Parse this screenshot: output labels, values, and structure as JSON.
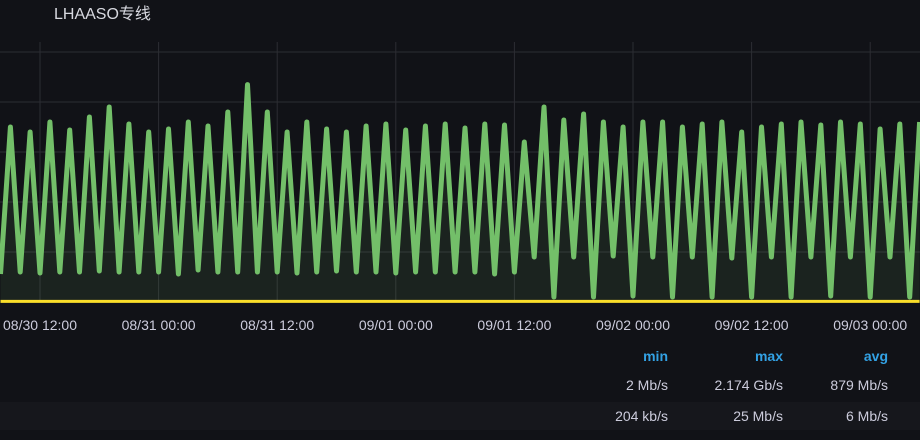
{
  "panel": {
    "title": "LHAASO专线"
  },
  "colors": {
    "series_green": "#73bf69",
    "series_yellow": "#fade2a",
    "grid": "#2c2d33",
    "legend_header": "#33a2e5"
  },
  "chart_data": {
    "type": "line",
    "title": "LHAASO专线",
    "x_ticks": [
      "08/30 12:00",
      "08/31 00:00",
      "08/31 12:00",
      "09/01 00:00",
      "09/01 12:00",
      "09/02 00:00",
      "09/02 12:00",
      "09/03 00:00"
    ],
    "ylim": [
      0,
      2.6
    ],
    "y_unit": "Gb/s",
    "grid": true,
    "legend_placement": "bottom",
    "x": [
      "08/30 08:00",
      "08/30 09:00",
      "08/30 10:00",
      "08/30 11:00",
      "08/30 12:00",
      "08/30 13:00",
      "08/30 14:00",
      "08/30 15:00",
      "08/30 16:00",
      "08/30 17:00",
      "08/30 18:00",
      "08/30 19:00",
      "08/30 20:00",
      "08/30 21:00",
      "08/30 22:00",
      "08/30 23:00",
      "08/31 00:00",
      "08/31 01:00",
      "08/31 02:00",
      "08/31 03:00",
      "08/31 04:00",
      "08/31 05:00",
      "08/31 06:00",
      "08/31 07:00",
      "08/31 08:00",
      "08/31 09:00",
      "08/31 10:00",
      "08/31 11:00",
      "08/31 12:00",
      "08/31 13:00",
      "08/31 14:00",
      "08/31 15:00",
      "08/31 16:00",
      "08/31 17:00",
      "08/31 18:00",
      "08/31 19:00",
      "08/31 20:00",
      "08/31 21:00",
      "08/31 22:00",
      "08/31 23:00",
      "09/01 00:00",
      "09/01 01:00",
      "09/01 02:00",
      "09/01 03:00",
      "09/01 04:00",
      "09/01 05:00",
      "09/01 06:00",
      "09/01 07:00",
      "09/01 08:00",
      "09/01 09:00",
      "09/01 10:00",
      "09/01 11:00",
      "09/01 12:00",
      "09/01 13:00",
      "09/01 14:00",
      "09/01 15:00",
      "09/01 16:00",
      "09/01 17:00",
      "09/01 18:00",
      "09/01 19:00",
      "09/01 20:00",
      "09/01 21:00",
      "09/01 22:00",
      "09/01 23:00",
      "09/02 00:00",
      "09/02 01:00",
      "09/02 02:00",
      "09/02 03:00",
      "09/02 04:00",
      "09/02 05:00",
      "09/02 06:00",
      "09/02 07:00",
      "09/02 08:00",
      "09/02 09:00",
      "09/02 10:00",
      "09/02 11:00",
      "09/02 12:00",
      "09/02 13:00",
      "09/02 14:00",
      "09/02 15:00",
      "09/02 16:00",
      "09/02 17:00",
      "09/02 18:00",
      "09/02 19:00",
      "09/02 20:00",
      "09/02 21:00",
      "09/02 22:00",
      "09/02 23:00",
      "09/03 00:00",
      "09/03 01:00",
      "09/03 02:00",
      "09/03 03:00",
      "09/03 04:00",
      "09/03 05:00"
    ],
    "series": [
      {
        "color": "#73bf69",
        "values": [
          0.28,
          1.75,
          0.3,
          1.7,
          0.29,
          1.8,
          0.3,
          1.72,
          0.3,
          1.85,
          0.31,
          1.95,
          0.3,
          1.78,
          0.3,
          1.7,
          0.3,
          1.73,
          0.28,
          1.8,
          0.32,
          1.76,
          0.3,
          1.9,
          0.3,
          2.174,
          0.3,
          1.9,
          0.3,
          1.7,
          0.29,
          1.8,
          0.3,
          1.73,
          0.31,
          1.7,
          0.3,
          1.76,
          0.3,
          1.78,
          0.29,
          1.72,
          0.3,
          1.76,
          0.3,
          1.78,
          0.3,
          1.74,
          0.3,
          1.78,
          0.28,
          1.77,
          0.3,
          1.6,
          0.45,
          1.95,
          0.05,
          1.82,
          0.45,
          1.88,
          0.05,
          1.8,
          0.46,
          1.75,
          0.06,
          1.8,
          0.45,
          1.8,
          0.05,
          1.75,
          0.45,
          1.78,
          0.05,
          1.8,
          0.44,
          1.7,
          0.05,
          1.75,
          0.45,
          1.78,
          0.05,
          1.8,
          0.45,
          1.77,
          0.06,
          1.8,
          0.45,
          1.78,
          0.05,
          1.73,
          0.45,
          1.78,
          0.05,
          1.8
        ]
      },
      {
        "color": "#fade2a",
        "values": [
          0.006,
          0.006,
          0.006,
          0.006,
          0.006,
          0.006,
          0.006,
          0.006,
          0.006,
          0.006,
          0.006,
          0.006,
          0.006,
          0.006,
          0.006,
          0.006,
          0.006,
          0.006,
          0.006,
          0.006,
          0.006,
          0.006,
          0.006,
          0.006,
          0.006,
          0.006,
          0.006,
          0.006,
          0.006,
          0.006,
          0.006,
          0.006,
          0.006,
          0.006,
          0.006,
          0.006,
          0.006,
          0.006,
          0.006,
          0.006,
          0.006,
          0.006,
          0.006,
          0.006,
          0.006,
          0.006,
          0.006,
          0.006,
          0.006,
          0.006,
          0.006,
          0.006,
          0.006,
          0.006,
          0.006,
          0.006,
          0.006,
          0.006,
          0.006,
          0.006,
          0.006,
          0.006,
          0.006,
          0.006,
          0.006,
          0.006,
          0.006,
          0.006,
          0.006,
          0.006,
          0.006,
          0.006,
          0.006,
          0.006,
          0.006,
          0.006,
          0.006,
          0.006,
          0.006,
          0.006,
          0.006,
          0.006,
          0.006,
          0.006,
          0.006,
          0.006,
          0.006,
          0.006,
          0.006,
          0.006,
          0.006,
          0.006,
          0.006,
          0.006
        ]
      }
    ]
  },
  "legend": {
    "headers": {
      "min": "min",
      "max": "max",
      "avg": "avg"
    },
    "rows": [
      {
        "min": "2 Mb/s",
        "max": "2.174 Gb/s",
        "avg": "879 Mb/s"
      },
      {
        "min": "204 kb/s",
        "max": "25 Mb/s",
        "avg": "6 Mb/s"
      }
    ]
  }
}
